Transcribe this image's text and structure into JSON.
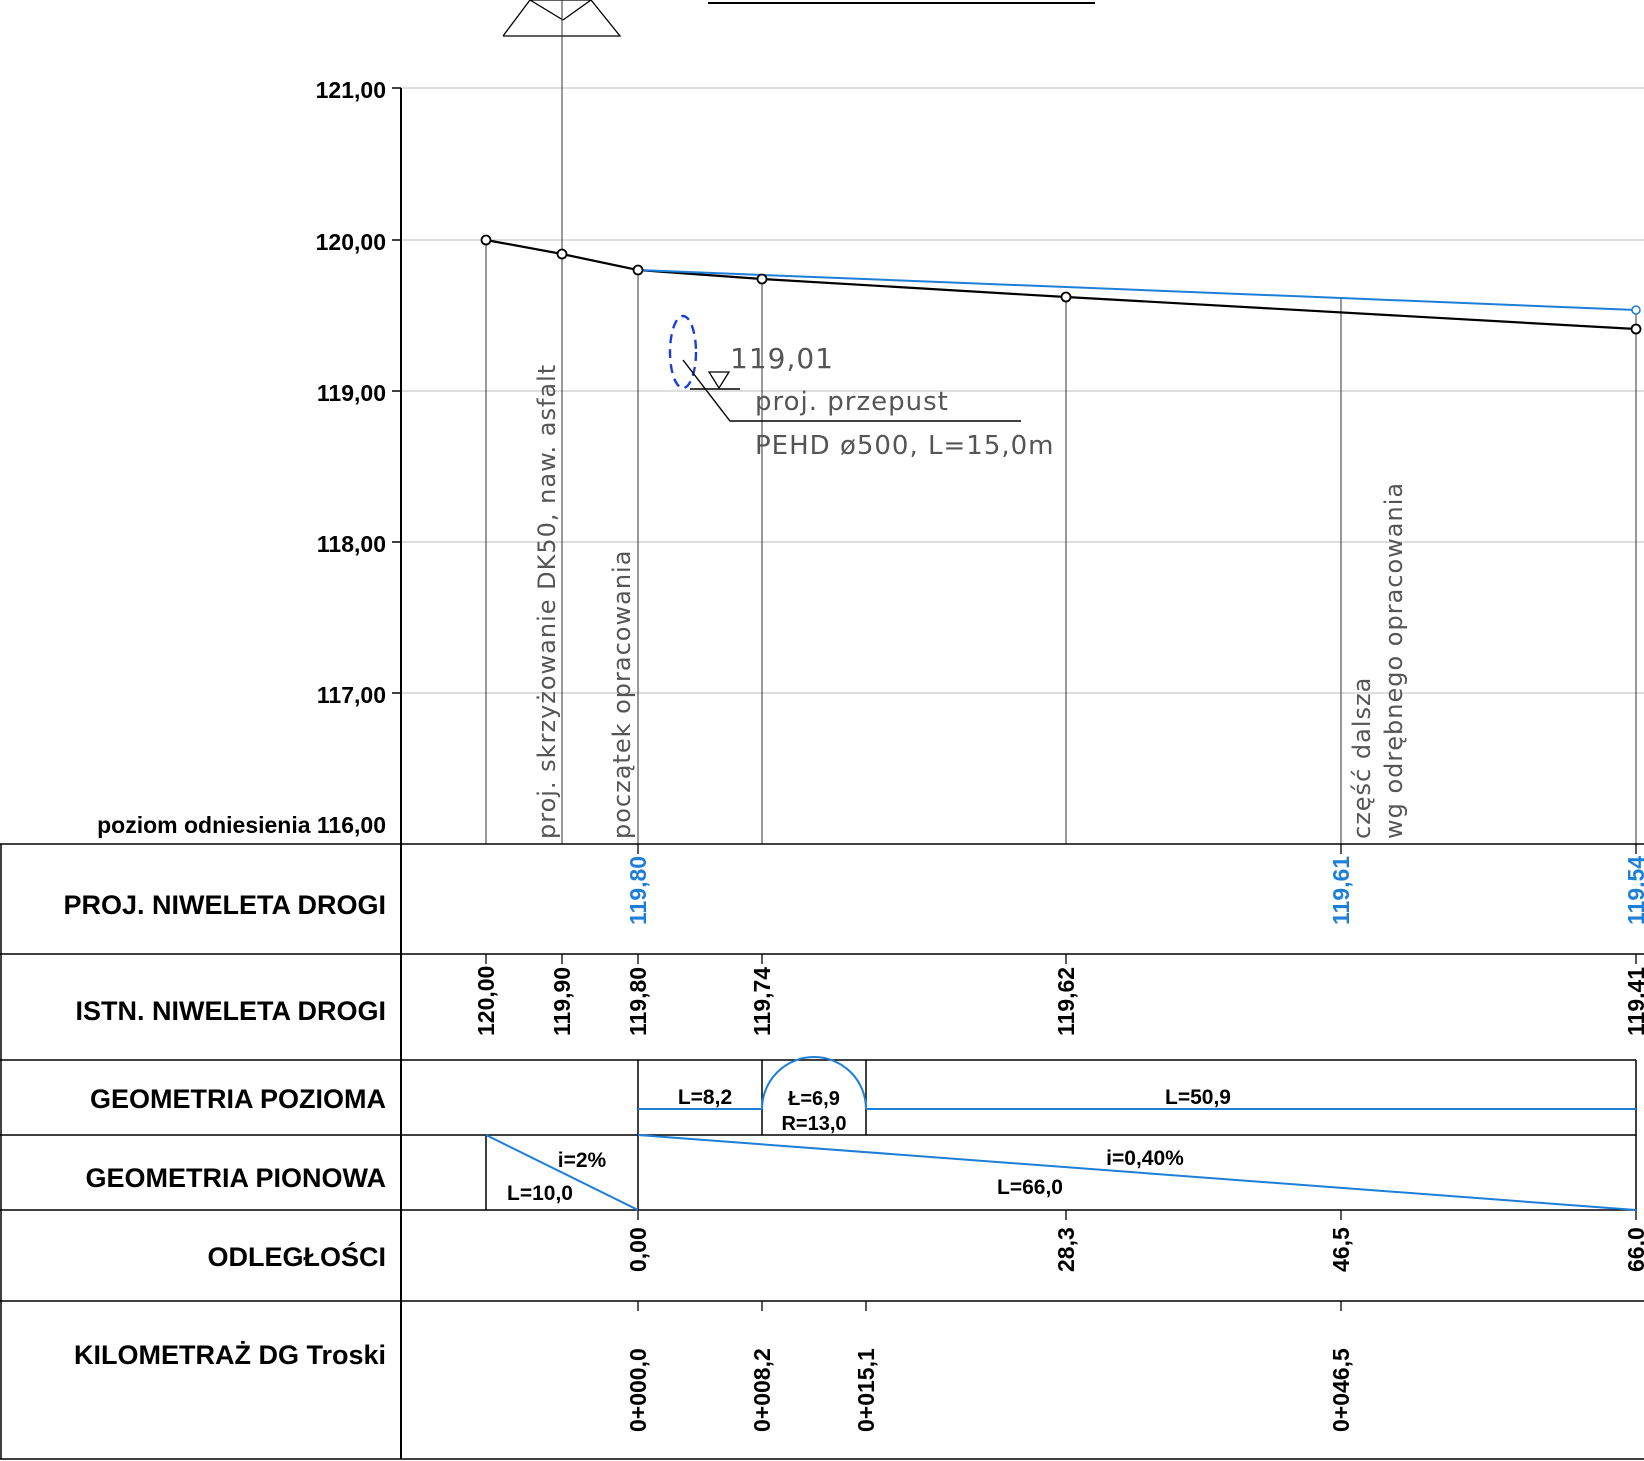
{
  "header": {
    "title_fragment": ""
  },
  "elevation_axis": {
    "labels": [
      "121,00",
      "120,00",
      "119,00",
      "118,00",
      "117,00"
    ],
    "values": [
      121,
      120,
      119,
      118,
      117
    ],
    "reference_label": "poziom odniesienia 116,00",
    "reference_value": 116
  },
  "profile": {
    "existing_points": [
      {
        "distance": -10.0,
        "elevation": 120.0
      },
      {
        "distance": -5.0,
        "elevation": 119.9
      },
      {
        "distance": 0.0,
        "elevation": 119.8
      },
      {
        "distance": 8.2,
        "elevation": 119.74
      },
      {
        "distance": 28.3,
        "elevation": 119.62
      },
      {
        "distance": 66.0,
        "elevation": 119.41
      }
    ],
    "design_points": [
      {
        "distance": 0.0,
        "elevation": 119.8
      },
      {
        "distance": 46.5,
        "elevation": 119.61
      },
      {
        "distance": 66.0,
        "elevation": 119.54
      }
    ],
    "colors": {
      "existing": "#000000",
      "design": "#1e7fd9",
      "grid": "#bdbdbd"
    }
  },
  "annotations": {
    "culvert_level": "119,01",
    "culvert_line1": "proj. przepust",
    "culvert_line2": "PEHD ø500, L=15,0m",
    "crossing_note": "proj. skrzyżowanie DK50, naw. asfalt",
    "start_note": "początek opracowania",
    "continuation_line1": "część dalsza",
    "continuation_line2": "wg odrębnego opracowania"
  },
  "table": {
    "rows": {
      "proj_niweleta": "PROJ. NIWELETA DROGI",
      "istn_niweleta": "ISTN. NIWELETA DROGI",
      "geom_pozioma": "GEOMETRIA POZIOMA",
      "geom_pionowa": "GEOMETRIA PIONOWA",
      "odleglosci": "ODLEGŁOŚCI",
      "kilometraz": "KILOMETRAŻ DG Troski"
    },
    "proj_values": [
      "119,80",
      "119,61",
      "119,54"
    ],
    "istn_values": [
      "120,00",
      "119,90",
      "119,80",
      "119,74",
      "119,62",
      "119,41"
    ],
    "horizontal": {
      "seg1_length": "L=8,2",
      "arc_length": "Ł=6,9",
      "arc_radius": "R=13,0",
      "seg2_length": "L=50,9"
    },
    "vertical": {
      "slope1": "i=2%",
      "length1": "L=10,0",
      "slope2": "i=0,40%",
      "length2": "L=66,0"
    },
    "distances": [
      "0,00",
      "28,3",
      "46,5",
      "66,0"
    ],
    "chainages": [
      "0+000,0",
      "0+008,2",
      "0+015,1",
      "0+046,5"
    ]
  }
}
